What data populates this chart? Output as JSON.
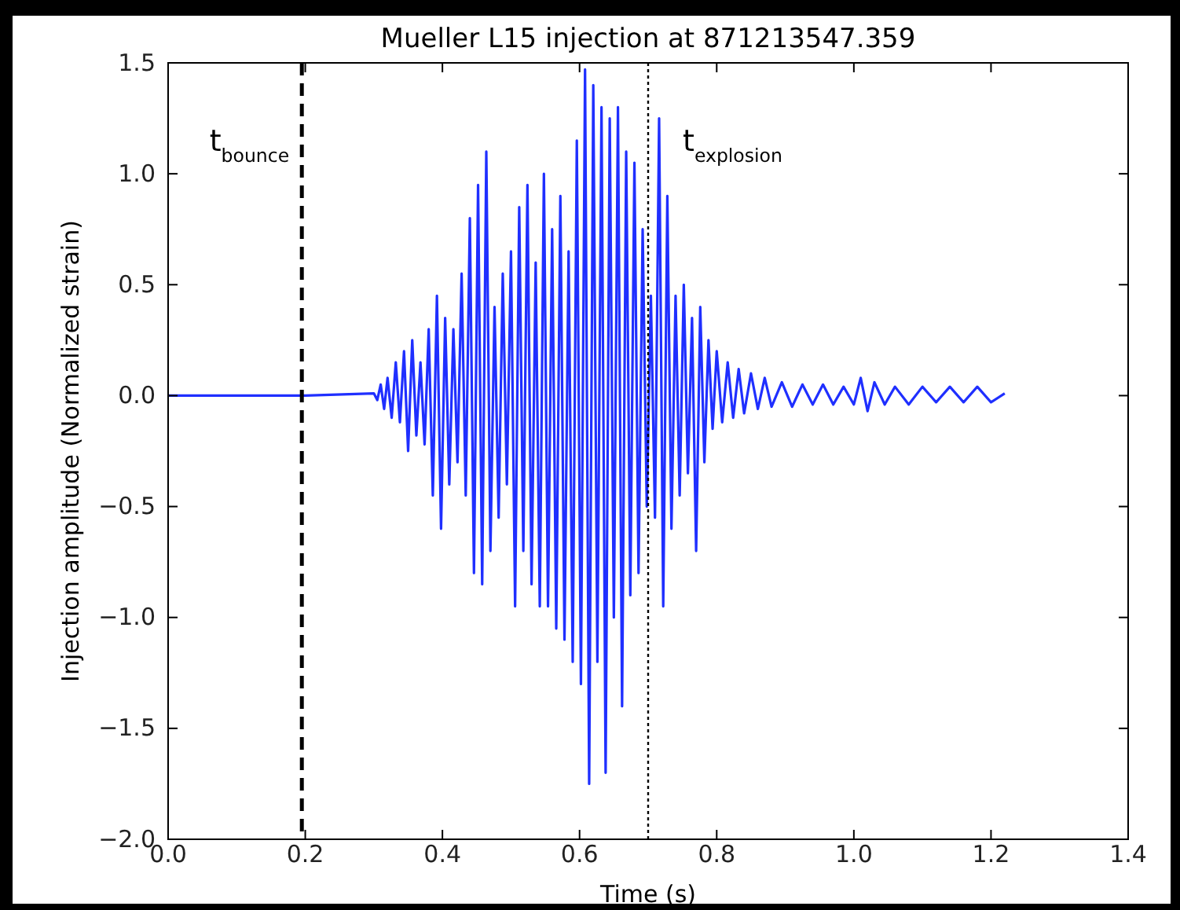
{
  "chart_data": {
    "type": "line",
    "title": "Mueller L15 injection at 871213547.359",
    "xlabel": "Time (s)",
    "ylabel": "Injection amplitude (Normalized strain)",
    "xlim": [
      0,
      1.4
    ],
    "ylim": [
      -2,
      1.5
    ],
    "xticks": [
      {
        "value": 0,
        "label": "0.0"
      },
      {
        "value": 0.2,
        "label": "0.2"
      },
      {
        "value": 0.4,
        "label": "0.4"
      },
      {
        "value": 0.6,
        "label": "0.6"
      },
      {
        "value": 0.8,
        "label": "0.8"
      },
      {
        "value": 1,
        "label": "1.0"
      },
      {
        "value": 1.2,
        "label": "1.2"
      },
      {
        "value": 1.4,
        "label": "1.4"
      }
    ],
    "yticks": [
      {
        "value": -2,
        "label": "−2.0"
      },
      {
        "value": -1.5,
        "label": "−1.5"
      },
      {
        "value": -1,
        "label": "−1.0"
      },
      {
        "value": -0.5,
        "label": "−0.5"
      },
      {
        "value": 0,
        "label": "0.0"
      },
      {
        "value": 0.5,
        "label": "0.5"
      },
      {
        "value": 1,
        "label": "1.0"
      },
      {
        "value": 1.5,
        "label": "1.5"
      }
    ],
    "grid": false,
    "marker": "none",
    "line_style": "solid",
    "ref_lines": [
      {
        "axis": "x",
        "value": 0.195,
        "label": "t$_{bounce}$",
        "color": "#000000",
        "line_style": "dashed"
      },
      {
        "axis": "x",
        "value": 0.7,
        "label": "t$_{explosion}$",
        "color": "#000000",
        "line_style": "dotted"
      }
    ],
    "series": [
      {
        "color": "#1f2fff",
        "x": [
          0,
          0.2,
          0.3,
          0.305,
          0.31,
          0.315,
          0.32,
          0.326,
          0.332,
          0.338,
          0.344,
          0.35,
          0.356,
          0.362,
          0.368,
          0.374,
          0.38,
          0.386,
          0.392,
          0.398,
          0.404,
          0.41,
          0.416,
          0.422,
          0.428,
          0.434,
          0.44,
          0.446,
          0.452,
          0.458,
          0.464,
          0.47,
          0.476,
          0.482,
          0.488,
          0.494,
          0.5,
          0.506,
          0.512,
          0.518,
          0.524,
          0.53,
          0.536,
          0.542,
          0.548,
          0.554,
          0.56,
          0.566,
          0.572,
          0.578,
          0.584,
          0.59,
          0.596,
          0.602,
          0.608,
          0.614,
          0.62,
          0.626,
          0.632,
          0.638,
          0.644,
          0.65,
          0.656,
          0.662,
          0.668,
          0.674,
          0.68,
          0.686,
          0.692,
          0.698,
          0.704,
          0.71,
          0.716,
          0.722,
          0.728,
          0.734,
          0.74,
          0.746,
          0.752,
          0.758,
          0.764,
          0.77,
          0.776,
          0.782,
          0.788,
          0.794,
          0.8,
          0.808,
          0.816,
          0.824,
          0.832,
          0.84,
          0.85,
          0.86,
          0.87,
          0.88,
          0.895,
          0.91,
          0.925,
          0.94,
          0.955,
          0.97,
          0.985,
          1,
          1.01,
          1.02,
          1.03,
          1.045,
          1.06,
          1.08,
          1.1,
          1.12,
          1.14,
          1.16,
          1.18,
          1.2,
          1.22
        ],
        "values": [
          0,
          0,
          0.01,
          -0.02,
          0.05,
          -0.06,
          0.08,
          -0.1,
          0.15,
          -0.12,
          0.2,
          -0.25,
          0.25,
          -0.18,
          0.15,
          -0.22,
          0.3,
          -0.45,
          0.45,
          -0.6,
          0.35,
          -0.4,
          0.3,
          -0.3,
          0.55,
          -0.45,
          0.8,
          -0.8,
          0.95,
          -0.85,
          1.1,
          -0.7,
          0.4,
          -0.55,
          0.55,
          -0.4,
          0.65,
          -0.95,
          0.85,
          -0.7,
          0.95,
          -0.85,
          0.6,
          -0.95,
          1,
          -0.95,
          0.75,
          -1.05,
          0.9,
          -1.1,
          0.65,
          -1.2,
          1.15,
          -1.3,
          1.47,
          -1.75,
          1.4,
          -1.2,
          1.3,
          -1.7,
          1.25,
          -1,
          1.3,
          -1.4,
          1.1,
          -0.9,
          1.05,
          -0.8,
          0.75,
          -0.5,
          0.45,
          -0.55,
          1.25,
          -0.95,
          0.9,
          -0.6,
          0.45,
          -0.45,
          0.5,
          -0.35,
          0.35,
          -0.7,
          0.4,
          -0.3,
          0.25,
          -0.15,
          0.2,
          -0.12,
          0.15,
          -0.1,
          0.12,
          -0.08,
          0.1,
          -0.06,
          0.08,
          -0.05,
          0.06,
          -0.05,
          0.05,
          -0.04,
          0.05,
          -0.04,
          0.04,
          -0.04,
          0.08,
          -0.07,
          0.06,
          -0.04,
          0.04,
          -0.04,
          0.04,
          -0.03,
          0.04,
          -0.03,
          0.04,
          -0.03,
          0.01
        ]
      }
    ]
  }
}
